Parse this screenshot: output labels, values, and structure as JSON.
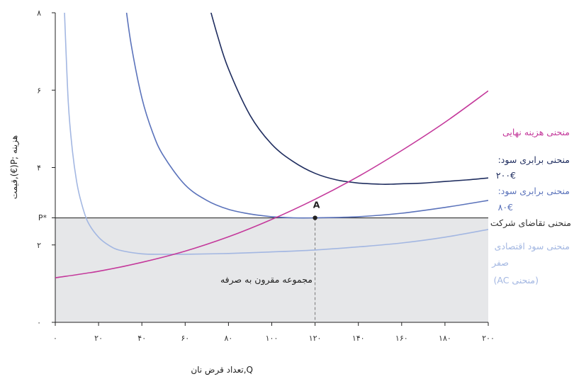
{
  "chart_data": {
    "type": "line",
    "xlabel": "Q,تعداد قرض نان",
    "ylabel": "هزینه ;P(€),قیمت",
    "xlim": [
      0,
      200
    ],
    "ylim": [
      0,
      8
    ],
    "x_ticks": [
      0,
      20,
      40,
      60,
      80,
      100,
      120,
      140,
      160,
      180,
      200
    ],
    "x_tick_labels": [
      "۰",
      "۲۰",
      "۴۰",
      "۶۰",
      "۸۰",
      "۱۰۰",
      "۱۲۰",
      "۱۴۰",
      "۱۶۰",
      "۱۸۰",
      "۲۰۰"
    ],
    "y_ticks": [
      0,
      2,
      4,
      6,
      8
    ],
    "y_tick_labels": [
      "۰",
      "۲",
      "۴",
      "۶",
      "۸"
    ],
    "p_star": 2.7,
    "p_star_label": "P*",
    "point_a": {
      "x": 120,
      "y": 2.7,
      "label": "A"
    },
    "consumer_surplus_label": "مجموعه مقرون به صرفه",
    "series": [
      {
        "key": "ac",
        "color": "#a3b7e2",
        "label_lines": [
          "منحنی سود اقتصادی",
          "صفر",
          "(منحنی AC)"
        ],
        "x": [
          4,
          6,
          8,
          10,
          12,
          15,
          20,
          25,
          30,
          40,
          50,
          60,
          80,
          100,
          120,
          140,
          160,
          180,
          200
        ],
        "y": [
          8.4,
          5.7,
          4.4,
          3.6,
          3.1,
          2.6,
          2.2,
          1.98,
          1.86,
          1.77,
          1.76,
          1.76,
          1.78,
          1.82,
          1.87,
          1.95,
          2.05,
          2.2,
          2.4
        ]
      },
      {
        "key": "iso80",
        "color": "#5b73bb",
        "label_lines": [
          "منحنی برابری سود:",
          "۸۰€"
        ],
        "x": [
          32,
          35,
          40,
          45,
          50,
          60,
          70,
          80,
          90,
          100,
          110,
          120,
          140,
          160,
          180,
          200
        ],
        "y": [
          8.4,
          7.2,
          5.8,
          4.9,
          4.3,
          3.55,
          3.15,
          2.92,
          2.8,
          2.73,
          2.7,
          2.7,
          2.73,
          2.82,
          2.97,
          3.15
        ]
      },
      {
        "key": "iso200",
        "color": "#1f2d5f",
        "label_lines": [
          "منحنی برابری سود:",
          "۲۰۰€"
        ],
        "x": [
          70,
          75,
          80,
          90,
          100,
          110,
          120,
          130,
          140,
          150,
          155,
          160,
          170,
          180,
          190,
          200
        ],
        "y": [
          8.4,
          7.4,
          6.55,
          5.35,
          4.6,
          4.15,
          3.85,
          3.68,
          3.6,
          3.57,
          3.57,
          3.58,
          3.6,
          3.64,
          3.68,
          3.73
        ]
      },
      {
        "key": "mc",
        "color": "#c4399b",
        "label_lines": [
          "منحنی هزینه نهایی"
        ],
        "x": [
          0,
          20,
          40,
          60,
          80,
          100,
          120,
          140,
          160,
          180,
          200
        ],
        "y": [
          1.15,
          1.32,
          1.55,
          1.84,
          2.21,
          2.66,
          3.18,
          3.77,
          4.44,
          5.17,
          5.98
        ]
      }
    ],
    "demand_label": "منحنی تقاضای شرکت",
    "demand_color": "#333333"
  }
}
